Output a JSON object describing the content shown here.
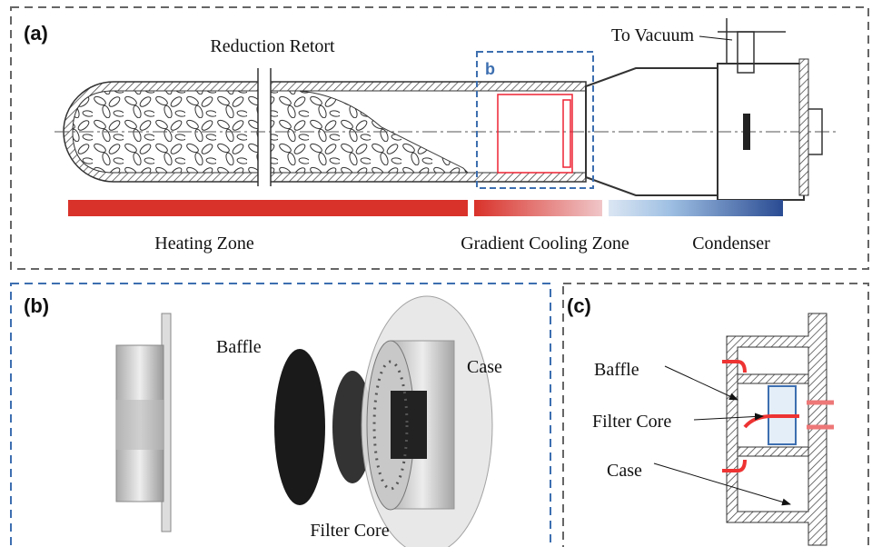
{
  "panels": {
    "a": {
      "label": "(a)",
      "inset_label": "b",
      "reduction_retort": "Reduction Retort",
      "to_vacuum": "To Vacuum",
      "heating_zone": "Heating Zone",
      "gradient_cooling_zone": "Gradient Cooling Zone",
      "condenser": "Condenser"
    },
    "b": {
      "label": "(b)",
      "baffle": "Baffle",
      "case": "Case",
      "filter_core": "Filter Core"
    },
    "c": {
      "label": "(c)",
      "baffle": "Baffle",
      "filter_core": "Filter Core",
      "case": "Case"
    }
  }
}
